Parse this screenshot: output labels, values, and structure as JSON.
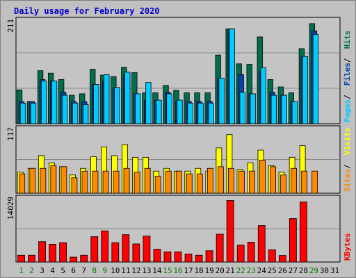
{
  "colors": {
    "background": "#c0c0c0",
    "panel": "#c4c4c4",
    "grid": "#8a8a8a",
    "hits": "#006e4e",
    "files": "#0044aa",
    "pages": "#00ccff",
    "visits": "#ffff00",
    "sites": "#ff8800",
    "kbytes": "#ff0000",
    "title": "#0000cc",
    "weekend_label": "#008000",
    "weekday_label": "#000000"
  },
  "chart_data": {
    "type": "bar",
    "title": "Daily usage for February 2020",
    "categories": [
      "1",
      "2",
      "3",
      "4",
      "5",
      "6",
      "7",
      "8",
      "9",
      "10",
      "11",
      "12",
      "13",
      "14",
      "15",
      "16",
      "17",
      "18",
      "19",
      "20",
      "21",
      "22",
      "23",
      "24",
      "25",
      "26",
      "27",
      "28",
      "29",
      "30",
      "31"
    ],
    "weekend_days": [
      "1",
      "2",
      "8",
      "9",
      "15",
      "16",
      "22",
      "23",
      "29"
    ],
    "panels": [
      {
        "name": "hits_files_pages",
        "max_label": "211",
        "ymax": 211,
        "side_labels": [
          "Pages",
          "Files",
          "Hits"
        ],
        "series": [
          {
            "name": "Hits",
            "color": "#006e4e",
            "values": [
              69,
              45,
              108,
              103,
              90,
              58,
              61,
              111,
              99,
              96,
              115,
              104,
              63,
              63,
              78,
              68,
              63,
              63,
              63,
              140,
              193,
              122,
              121,
              177,
              90,
              75,
              63,
              153,
              204,
              0,
              0
            ]
          },
          {
            "name": "Files",
            "color": "#0044aa",
            "values": [
              45,
              45,
              90,
              87,
              64,
              45,
              45,
              80,
              87,
              73,
              100,
              61,
              48,
              48,
              64,
              45,
              45,
              45,
              45,
              91,
              193,
              100,
              61,
              106,
              64,
              58,
              45,
              137,
              189,
              0,
              0
            ]
          },
          {
            "name": "Pages",
            "color": "#00ccff",
            "values": [
              42,
              42,
              87,
              87,
              58,
              42,
              39,
              80,
              100,
              74,
              105,
              61,
              84,
              48,
              61,
              48,
              42,
              42,
              42,
              93,
              193,
              64,
              61,
              114,
              58,
              58,
              45,
              137,
              182,
              0,
              0
            ]
          }
        ]
      },
      {
        "name": "visits_sites",
        "max_label": "117",
        "ymax": 117,
        "side_labels": [
          "Sites",
          "Visits"
        ],
        "series": [
          {
            "name": "Visits",
            "color": "#ffff00",
            "values": [
              38,
              45,
              68,
              55,
              48,
              33,
              45,
              66,
              84,
              68,
              88,
              65,
              65,
              40,
              45,
              40,
              40,
              45,
              40,
              82,
              106,
              43,
              55,
              78,
              50,
              38,
              65,
              86,
              0,
              0,
              0
            ]
          },
          {
            "name": "Sites",
            "color": "#ff8800",
            "values": [
              35,
              45,
              45,
              50,
              48,
              28,
              40,
              40,
              40,
              40,
              45,
              38,
              45,
              31,
              40,
              40,
              35,
              35,
              45,
              48,
              45,
              40,
              40,
              60,
              48,
              33,
              45,
              40,
              40,
              0,
              0
            ]
          }
        ]
      },
      {
        "name": "kbytes",
        "max_label": "14029",
        "ymax": 14029,
        "side_labels": [
          "KBytes"
        ],
        "series": [
          {
            "name": "KBytes",
            "color": "#ff0000",
            "values": [
              1490,
              1490,
              4465,
              3900,
              4250,
              1070,
              1490,
              5570,
              6830,
              4250,
              6000,
              3970,
              5690,
              2810,
              2240,
              2240,
              1770,
              1490,
              2480,
              6120,
              13500,
              3730,
              4360,
              8000,
              2690,
              1430,
              9540,
              13190,
              0,
              0,
              0
            ]
          }
        ]
      }
    ]
  }
}
